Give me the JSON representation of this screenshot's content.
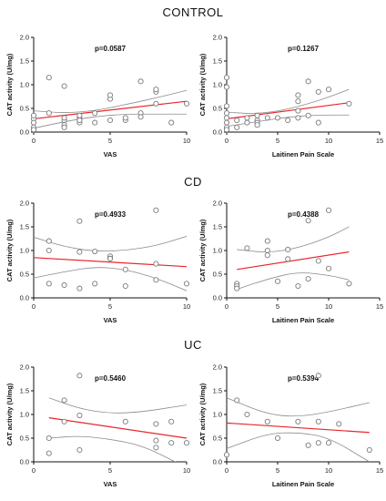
{
  "sections": [
    {
      "title": "CONTROL"
    },
    {
      "title": "CD"
    },
    {
      "title": "UC"
    }
  ],
  "colors": {
    "fit": "#e8262b",
    "band": "#8c8c8c",
    "points": "#7a7a7a",
    "axis": "#111111"
  },
  "chart_data": [
    {
      "type": "scatter",
      "group": "CONTROL",
      "xlabel": "VAS",
      "ylabel": "CAT activity (U/mg)",
      "p_value": "p=0.0587",
      "xlim": [
        0,
        10
      ],
      "ylim": [
        0,
        2.0
      ],
      "xticks": [
        "0",
        "5",
        "10"
      ],
      "yticks": [
        "0.0",
        "0.5",
        "1.0",
        "1.5",
        "2.0"
      ],
      "points": [
        [
          0,
          0.28
        ],
        [
          0,
          0.35
        ],
        [
          0,
          0.1
        ],
        [
          0,
          0.2
        ],
        [
          0,
          0.05
        ],
        [
          1,
          1.15
        ],
        [
          1,
          0.4
        ],
        [
          2,
          0.97
        ],
        [
          2,
          0.25
        ],
        [
          2,
          0.15
        ],
        [
          2,
          0.1
        ],
        [
          2,
          0.3
        ],
        [
          3,
          0.3
        ],
        [
          3,
          0.35
        ],
        [
          3,
          0.2
        ],
        [
          3,
          0.25
        ],
        [
          4,
          0.4
        ],
        [
          4,
          0.2
        ],
        [
          5,
          0.25
        ],
        [
          5,
          0.7
        ],
        [
          5,
          0.78
        ],
        [
          6,
          0.25
        ],
        [
          6,
          0.3
        ],
        [
          7,
          1.07
        ],
        [
          7,
          0.4
        ],
        [
          7,
          0.32
        ],
        [
          8,
          0.85
        ],
        [
          8,
          0.9
        ],
        [
          8,
          0.6
        ],
        [
          9,
          0.2
        ],
        [
          10,
          0.6
        ]
      ],
      "fit": [
        [
          0,
          0.28
        ],
        [
          10,
          0.65
        ]
      ],
      "band_upper": [
        [
          0,
          0.45
        ],
        [
          2,
          0.4
        ],
        [
          4,
          0.45
        ],
        [
          6,
          0.58
        ],
        [
          8,
          0.72
        ],
        [
          10,
          0.88
        ]
      ],
      "band_lower": [
        [
          0,
          0.08
        ],
        [
          2,
          0.22
        ],
        [
          4,
          0.33
        ],
        [
          6,
          0.38
        ],
        [
          8,
          0.38
        ],
        [
          10,
          0.38
        ]
      ]
    },
    {
      "type": "scatter",
      "group": "CONTROL",
      "xlabel": "Laitinen Pain Scale",
      "ylabel": "CAT activity (U/mg)",
      "p_value": "p=0.1267",
      "xlim": [
        0,
        15
      ],
      "ylim": [
        0,
        2.0
      ],
      "xticks": [
        "0",
        "5",
        "10",
        "15"
      ],
      "yticks": [
        "0.0",
        "0.5",
        "1.0",
        "1.5",
        "2.0"
      ],
      "points": [
        [
          0,
          1.15
        ],
        [
          0,
          0.95
        ],
        [
          0,
          0.55
        ],
        [
          0,
          0.4
        ],
        [
          0,
          0.3
        ],
        [
          0,
          0.2
        ],
        [
          0,
          0.1
        ],
        [
          0,
          0.05
        ],
        [
          1,
          0.25
        ],
        [
          1,
          0.1
        ],
        [
          2,
          0.3
        ],
        [
          2,
          0.2
        ],
        [
          3,
          0.35
        ],
        [
          3,
          0.25
        ],
        [
          3,
          0.2
        ],
        [
          3,
          0.15
        ],
        [
          4,
          0.3
        ],
        [
          5,
          0.3
        ],
        [
          6,
          0.25
        ],
        [
          7,
          0.78
        ],
        [
          7,
          0.65
        ],
        [
          7,
          0.45
        ],
        [
          7,
          0.3
        ],
        [
          8,
          0.35
        ],
        [
          8,
          1.07
        ],
        [
          9,
          0.85
        ],
        [
          9,
          0.2
        ],
        [
          10,
          0.9
        ],
        [
          12,
          0.6
        ]
      ],
      "fit": [
        [
          0,
          0.28
        ],
        [
          12,
          0.62
        ]
      ],
      "band_upper": [
        [
          0,
          0.42
        ],
        [
          3,
          0.38
        ],
        [
          6,
          0.48
        ],
        [
          9,
          0.66
        ],
        [
          12,
          0.9
        ]
      ],
      "band_lower": [
        [
          0,
          0.12
        ],
        [
          3,
          0.22
        ],
        [
          6,
          0.32
        ],
        [
          9,
          0.36
        ],
        [
          12,
          0.36
        ]
      ]
    },
    {
      "type": "scatter",
      "group": "CD",
      "xlabel": "VAS",
      "ylabel": "CAT activity (U/mg)",
      "p_value": "p=0.4933",
      "xlim": [
        0,
        10
      ],
      "ylim": [
        0,
        2.0
      ],
      "xticks": [
        "0",
        "5",
        "10"
      ],
      "yticks": [
        "0.0",
        "0.5",
        "1.0",
        "1.5",
        "2.0"
      ],
      "points": [
        [
          1,
          1.2
        ],
        [
          1,
          1.0
        ],
        [
          1,
          0.3
        ],
        [
          2,
          0.27
        ],
        [
          3,
          1.62
        ],
        [
          3,
          0.2
        ],
        [
          3,
          0.97
        ],
        [
          4,
          0.98
        ],
        [
          4,
          0.3
        ],
        [
          5,
          0.88
        ],
        [
          5,
          0.83
        ],
        [
          5,
          0.83
        ],
        [
          6,
          0.6
        ],
        [
          6,
          0.25
        ],
        [
          8,
          1.85
        ],
        [
          8,
          0.72
        ],
        [
          8,
          0.38
        ],
        [
          10,
          0.3
        ]
      ],
      "fit": [
        [
          0,
          0.85
        ],
        [
          10,
          0.66
        ]
      ],
      "band_upper": [
        [
          0,
          1.28
        ],
        [
          2,
          1.08
        ],
        [
          4,
          0.98
        ],
        [
          6,
          1.0
        ],
        [
          8,
          1.1
        ],
        [
          10,
          1.3
        ]
      ],
      "band_lower": [
        [
          0,
          0.42
        ],
        [
          2,
          0.55
        ],
        [
          4,
          0.66
        ],
        [
          6,
          0.6
        ],
        [
          8,
          0.42
        ],
        [
          10,
          0.15
        ]
      ]
    },
    {
      "type": "scatter",
      "group": "CD",
      "xlabel": "Laitinen Pain Scale",
      "ylabel": "CAT activity (U/mg)",
      "p_value": "p=0.4388",
      "xlim": [
        0,
        15
      ],
      "ylim": [
        0,
        2.0
      ],
      "xticks": [
        "0",
        "5",
        "10",
        "15"
      ],
      "yticks": [
        "0.0",
        "0.5",
        "1.0",
        "1.5",
        "2.0"
      ],
      "points": [
        [
          1,
          0.3
        ],
        [
          1,
          0.25
        ],
        [
          1,
          0.2
        ],
        [
          2,
          1.05
        ],
        [
          4,
          1.2
        ],
        [
          4,
          1.0
        ],
        [
          4,
          0.9
        ],
        [
          5,
          0.35
        ],
        [
          6,
          1.02
        ],
        [
          6,
          0.82
        ],
        [
          7,
          0.25
        ],
        [
          8,
          1.63
        ],
        [
          8,
          0.4
        ],
        [
          9,
          0.78
        ],
        [
          10,
          1.85
        ],
        [
          10,
          0.62
        ],
        [
          12,
          0.3
        ]
      ],
      "fit": [
        [
          1,
          0.6
        ],
        [
          12,
          0.97
        ]
      ],
      "band_upper": [
        [
          1,
          1.02
        ],
        [
          4,
          0.95
        ],
        [
          7,
          1.05
        ],
        [
          10,
          1.28
        ],
        [
          12,
          1.5
        ]
      ],
      "band_lower": [
        [
          1,
          0.18
        ],
        [
          4,
          0.4
        ],
        [
          7,
          0.55
        ],
        [
          10,
          0.48
        ],
        [
          12,
          0.38
        ]
      ]
    },
    {
      "type": "scatter",
      "group": "UC",
      "xlabel": "VAS",
      "ylabel": "CAT activity (U/mg)",
      "p_value": "p=0.5460",
      "xlim": [
        0,
        10
      ],
      "ylim": [
        0,
        2.0
      ],
      "xticks": [
        "0",
        "5",
        "10"
      ],
      "yticks": [
        "0.0",
        "0.5",
        "1.0",
        "1.5",
        "2.0"
      ],
      "points": [
        [
          1,
          0.5
        ],
        [
          1,
          0.18
        ],
        [
          2,
          1.3
        ],
        [
          2,
          0.85
        ],
        [
          3,
          1.82
        ],
        [
          3,
          0.98
        ],
        [
          3,
          0.25
        ],
        [
          6,
          0.85
        ],
        [
          8,
          0.8
        ],
        [
          8,
          0.45
        ],
        [
          8,
          0.3
        ],
        [
          9,
          0.85
        ],
        [
          9,
          0.4
        ],
        [
          10,
          0.4
        ]
      ],
      "fit": [
        [
          1,
          0.93
        ],
        [
          10,
          0.5
        ]
      ],
      "band_upper": [
        [
          1,
          1.35
        ],
        [
          3,
          1.12
        ],
        [
          5,
          1.02
        ],
        [
          7,
          1.05
        ],
        [
          9,
          1.15
        ],
        [
          10,
          1.2
        ]
      ],
      "band_lower": [
        [
          1,
          0.5
        ],
        [
          3,
          0.55
        ],
        [
          5,
          0.48
        ],
        [
          7,
          0.35
        ],
        [
          9,
          0.05
        ],
        [
          10,
          -0.15
        ]
      ]
    },
    {
      "type": "scatter",
      "group": "UC",
      "xlabel": "Laitinen Pain Scale",
      "ylabel": "CAT activity (U/mg)",
      "p_value": "p=0.5394",
      "xlim": [
        0,
        15
      ],
      "ylim": [
        0,
        2.0
      ],
      "xticks": [
        "0",
        "5",
        "10",
        "15"
      ],
      "yticks": [
        "0.0",
        "0.5",
        "1.0",
        "1.5",
        "2.0"
      ],
      "points": [
        [
          0,
          0.15
        ],
        [
          1,
          1.3
        ],
        [
          2,
          1.0
        ],
        [
          4,
          0.85
        ],
        [
          5,
          0.5
        ],
        [
          7,
          0.85
        ],
        [
          8,
          0.35
        ],
        [
          9,
          1.82
        ],
        [
          9,
          0.85
        ],
        [
          9,
          0.4
        ],
        [
          10,
          0.4
        ],
        [
          11,
          0.8
        ],
        [
          14,
          0.25
        ]
      ],
      "fit": [
        [
          0,
          0.82
        ],
        [
          14,
          0.62
        ]
      ],
      "band_upper": [
        [
          0,
          1.35
        ],
        [
          4,
          1.0
        ],
        [
          7,
          0.95
        ],
        [
          10,
          1.05
        ],
        [
          14,
          1.25
        ]
      ],
      "band_lower": [
        [
          0,
          0.28
        ],
        [
          4,
          0.6
        ],
        [
          7,
          0.62
        ],
        [
          10,
          0.52
        ],
        [
          14,
          0.0
        ]
      ]
    }
  ]
}
